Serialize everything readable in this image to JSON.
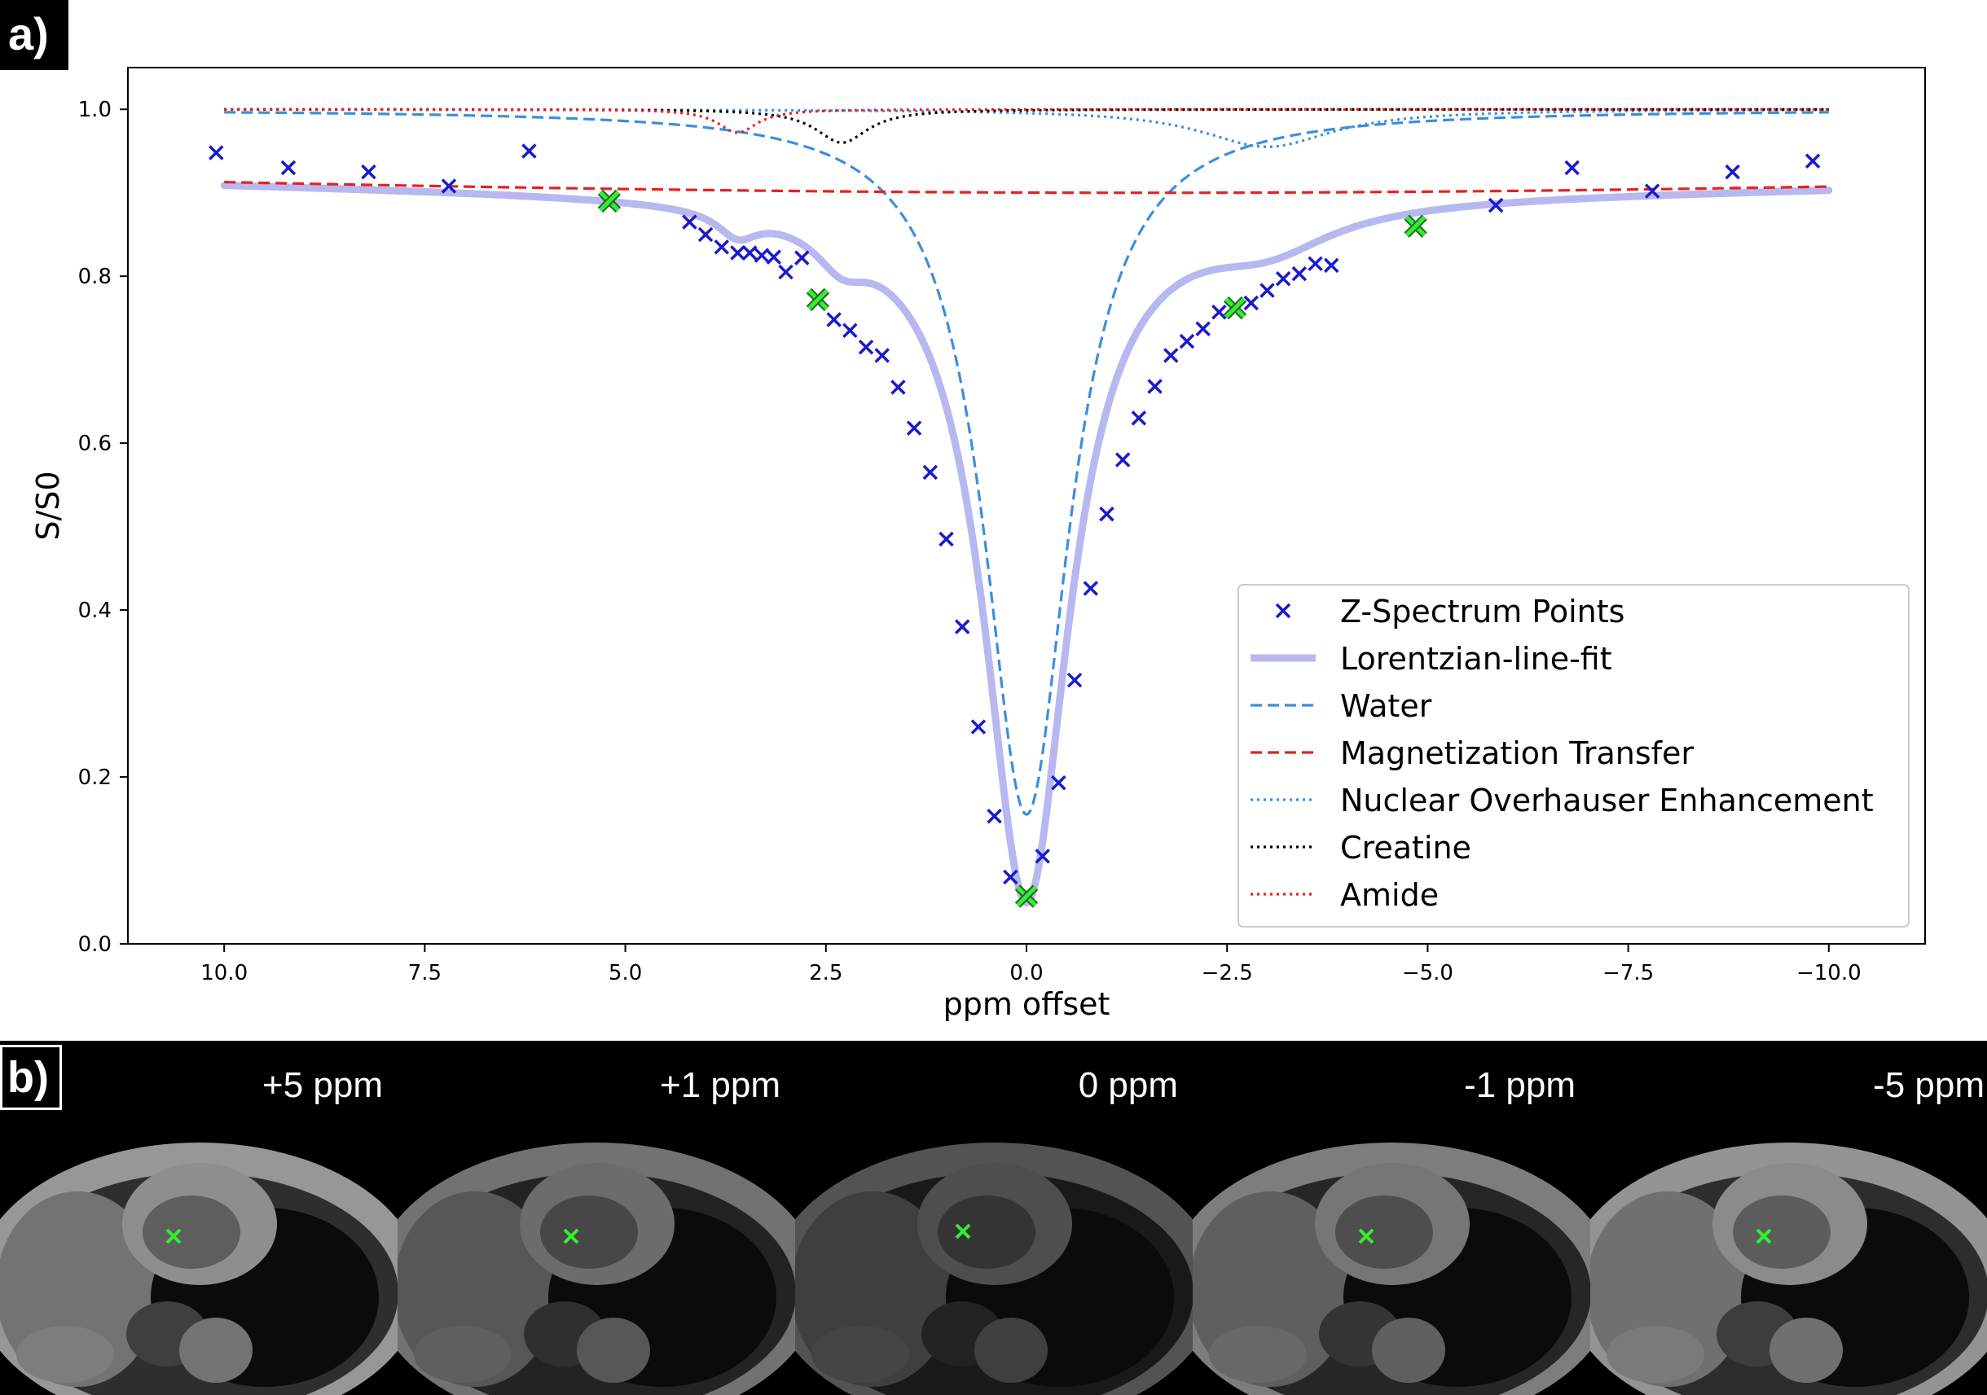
{
  "panel_a_label": "a)",
  "panel_b_label": "b)",
  "chart_data": {
    "type": "line",
    "xlabel": "ppm offset",
    "ylabel": "S/S0",
    "xlim": [
      11.2,
      -11.2
    ],
    "ylim": [
      0.0,
      1.05
    ],
    "x_ticks": [
      10.0,
      7.5,
      5.0,
      2.5,
      0.0,
      -2.5,
      -5.0,
      -7.5,
      -10.0
    ],
    "x_tick_labels": [
      "10.0",
      "7.5",
      "5.0",
      "2.5",
      "0.0",
      "−2.5",
      "−5.0",
      "−7.5",
      "−10.0"
    ],
    "y_ticks": [
      0.0,
      0.2,
      0.4,
      0.6,
      0.8,
      1.0
    ],
    "y_tick_labels": [
      "0.0",
      "0.2",
      "0.4",
      "0.6",
      "0.8",
      "1.0"
    ],
    "legend_position": "lower-right",
    "legend": [
      {
        "label": "Z-Spectrum Points",
        "style": "marker-x",
        "color": "#1a1acc"
      },
      {
        "label": "Lorentzian-line-fit",
        "style": "solid-thick",
        "color": "#b8b8f0"
      },
      {
        "label": "Water",
        "style": "dashed",
        "color": "#3a8fdc"
      },
      {
        "label": "Magnetization Transfer",
        "style": "dashed",
        "color": "#e8211f"
      },
      {
        "label": "Nuclear Overhauser Enhancement",
        "style": "dotted",
        "color": "#3a8fdc"
      },
      {
        "label": "Creatine",
        "style": "dotted",
        "color": "#000000"
      },
      {
        "label": "Amide",
        "style": "dotted",
        "color": "#e8211f"
      }
    ],
    "z_spectrum_points": [
      [
        10.1,
        0.948
      ],
      [
        9.2,
        0.93
      ],
      [
        8.2,
        0.925
      ],
      [
        7.2,
        0.908
      ],
      [
        6.2,
        0.95
      ],
      [
        4.2,
        0.865
      ],
      [
        4.0,
        0.85
      ],
      [
        3.8,
        0.835
      ],
      [
        3.6,
        0.828
      ],
      [
        3.45,
        0.828
      ],
      [
        3.3,
        0.825
      ],
      [
        3.15,
        0.823
      ],
      [
        3.0,
        0.805
      ],
      [
        2.8,
        0.822
      ],
      [
        2.6,
        0.773
      ],
      [
        2.4,
        0.748
      ],
      [
        2.2,
        0.735
      ],
      [
        2.0,
        0.715
      ],
      [
        1.8,
        0.705
      ],
      [
        1.6,
        0.667
      ],
      [
        1.4,
        0.618
      ],
      [
        1.2,
        0.565
      ],
      [
        1.0,
        0.485
      ],
      [
        0.8,
        0.38
      ],
      [
        0.6,
        0.26
      ],
      [
        0.4,
        0.153
      ],
      [
        0.2,
        0.08
      ],
      [
        0.0,
        0.057
      ],
      [
        -0.2,
        0.105
      ],
      [
        -0.4,
        0.193
      ],
      [
        -0.6,
        0.316
      ],
      [
        -0.8,
        0.426
      ],
      [
        -1.0,
        0.515
      ],
      [
        -1.2,
        0.58
      ],
      [
        -1.4,
        0.63
      ],
      [
        -1.6,
        0.668
      ],
      [
        -1.8,
        0.705
      ],
      [
        -2.0,
        0.722
      ],
      [
        -2.2,
        0.737
      ],
      [
        -2.4,
        0.757
      ],
      [
        -2.6,
        0.762
      ],
      [
        -2.8,
        0.768
      ],
      [
        -3.0,
        0.783
      ],
      [
        -3.2,
        0.797
      ],
      [
        -3.4,
        0.803
      ],
      [
        -3.6,
        0.815
      ],
      [
        -3.8,
        0.813
      ],
      [
        -4.85,
        0.86
      ],
      [
        -5.85,
        0.885
      ],
      [
        -6.8,
        0.93
      ],
      [
        -7.8,
        0.902
      ],
      [
        -8.8,
        0.925
      ],
      [
        -9.8,
        0.938
      ]
    ],
    "highlighted_points": [
      [
        5.2,
        0.89
      ],
      [
        2.6,
        0.772
      ],
      [
        0.0,
        0.057
      ],
      [
        -2.6,
        0.762
      ],
      [
        -4.85,
        0.86
      ]
    ],
    "lorentzian_fit_params": {
      "water": {
        "center": 0.0,
        "amplitude": 0.845,
        "fwhm": 1.3
      },
      "mt": {
        "center": -1.5,
        "amplitude": 0.1,
        "fwhm": 60.0
      },
      "noe": {
        "center": -3.0,
        "amplitude": 0.045,
        "fwhm": 2.0
      },
      "creatine": {
        "center": 2.3,
        "amplitude": 0.04,
        "fwhm": 0.8
      },
      "amide": {
        "center": 3.6,
        "amplitude": 0.028,
        "fwhm": 0.6
      }
    }
  },
  "scans": [
    {
      "label": "+5 ppm",
      "brightness": 0.82
    },
    {
      "label": "+1 ppm",
      "brightness": 0.62
    },
    {
      "label": "0 ppm",
      "brightness": 0.45
    },
    {
      "label": "-1 ppm",
      "brightness": 0.68
    },
    {
      "label": "-5 ppm",
      "brightness": 0.8
    }
  ]
}
